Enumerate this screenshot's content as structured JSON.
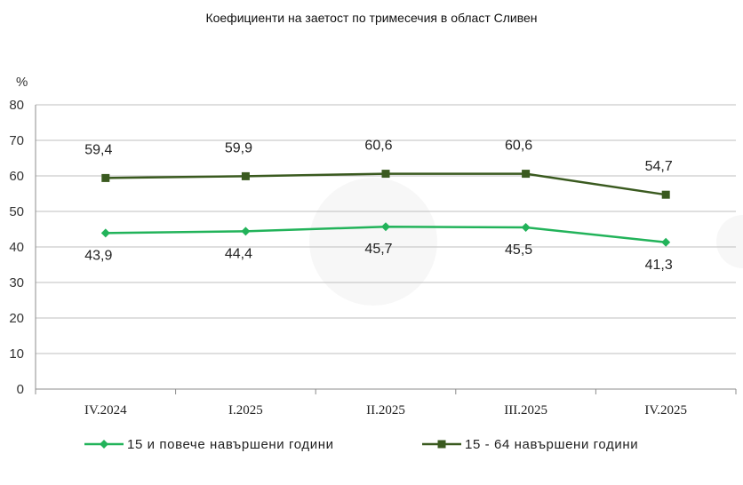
{
  "chart_data": {
    "type": "line",
    "title": "Коефициенти на заетост по тримесечия в област Сливен",
    "ylabel": "%",
    "xlabel": "",
    "ylim": [
      0,
      80
    ],
    "yticks": [
      0,
      10,
      20,
      30,
      40,
      50,
      60,
      70,
      80
    ],
    "grid": true,
    "legend_position": "bottom",
    "categories": [
      "IV.2024",
      "I.2025",
      "II.2025",
      "III.2025",
      "IV.2025"
    ],
    "series": [
      {
        "name": "15 - 64 навършени години",
        "values": [
          59.4,
          59.9,
          60.6,
          60.6,
          54.7
        ],
        "labels": [
          "59,4",
          "59,9",
          "60,6",
          "60,6",
          "54,7"
        ],
        "color": "#3a5a1f",
        "marker": "square",
        "label_position": "above"
      },
      {
        "name": "15 и повече навършени години",
        "values": [
          43.9,
          44.4,
          45.7,
          45.5,
          41.3
        ],
        "labels": [
          "43,9",
          "44,4",
          "45,7",
          "45,5",
          "41,3"
        ],
        "color": "#22b35a",
        "marker": "diamond",
        "label_position": "below"
      }
    ],
    "legend_order": [
      1,
      0
    ]
  }
}
